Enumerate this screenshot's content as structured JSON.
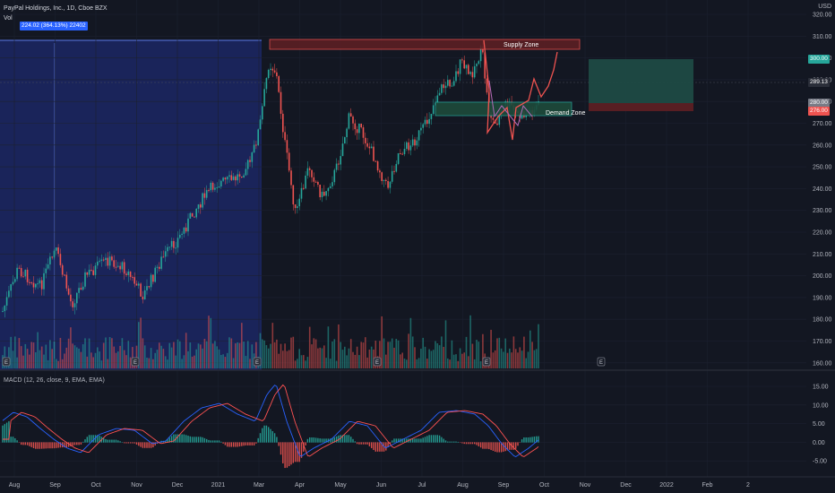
{
  "header": {
    "title": "PayPal Holdings, Inc., 1D, Cboe BZX",
    "vol_label": "Vol",
    "measure_badge": "224.02 (364.13%) 22402",
    "currency": "USD"
  },
  "zones": {
    "supply_label": "Supply Zone",
    "demand_label": "Demand Zone"
  },
  "price_axis": {
    "ticks": [
      "320.00",
      "310.00",
      "300.00",
      "290.00",
      "280.00",
      "270.00",
      "260.00",
      "250.00",
      "240.00",
      "230.00",
      "220.00",
      "210.00",
      "200.00",
      "190.00",
      "180.00",
      "170.00",
      "160.00"
    ],
    "badges": [
      {
        "text": "300.00",
        "color": "#26a69a"
      },
      {
        "text": "289.13",
        "color": "#2a2e39"
      },
      {
        "text": "280.00",
        "color": "#787b86"
      },
      {
        "text": "276.00",
        "color": "#ef5350"
      }
    ]
  },
  "macd": {
    "label": "MACD (12, 26, close, 9, EMA, EMA)",
    "ticks": [
      "15.00",
      "10.00",
      "5.00",
      "0.00",
      "-5.00"
    ]
  },
  "time_axis": {
    "labels": [
      "Aug",
      "Sep",
      "Oct",
      "Nov",
      "Dec",
      "2021",
      "Mar",
      "Apr",
      "May",
      "Jun",
      "Jul",
      "Aug",
      "Sep",
      "Oct",
      "Nov",
      "Dec",
      "2022",
      "Feb",
      "2"
    ]
  },
  "colors": {
    "up": "#26a69a",
    "down": "#ef5350",
    "background": "#131722",
    "selection": "#1e2a6e",
    "macd_line": "#2962ff",
    "signal_line": "#ff5252"
  },
  "icons": {
    "earnings_marker": "E",
    "event_marker": "E"
  }
}
